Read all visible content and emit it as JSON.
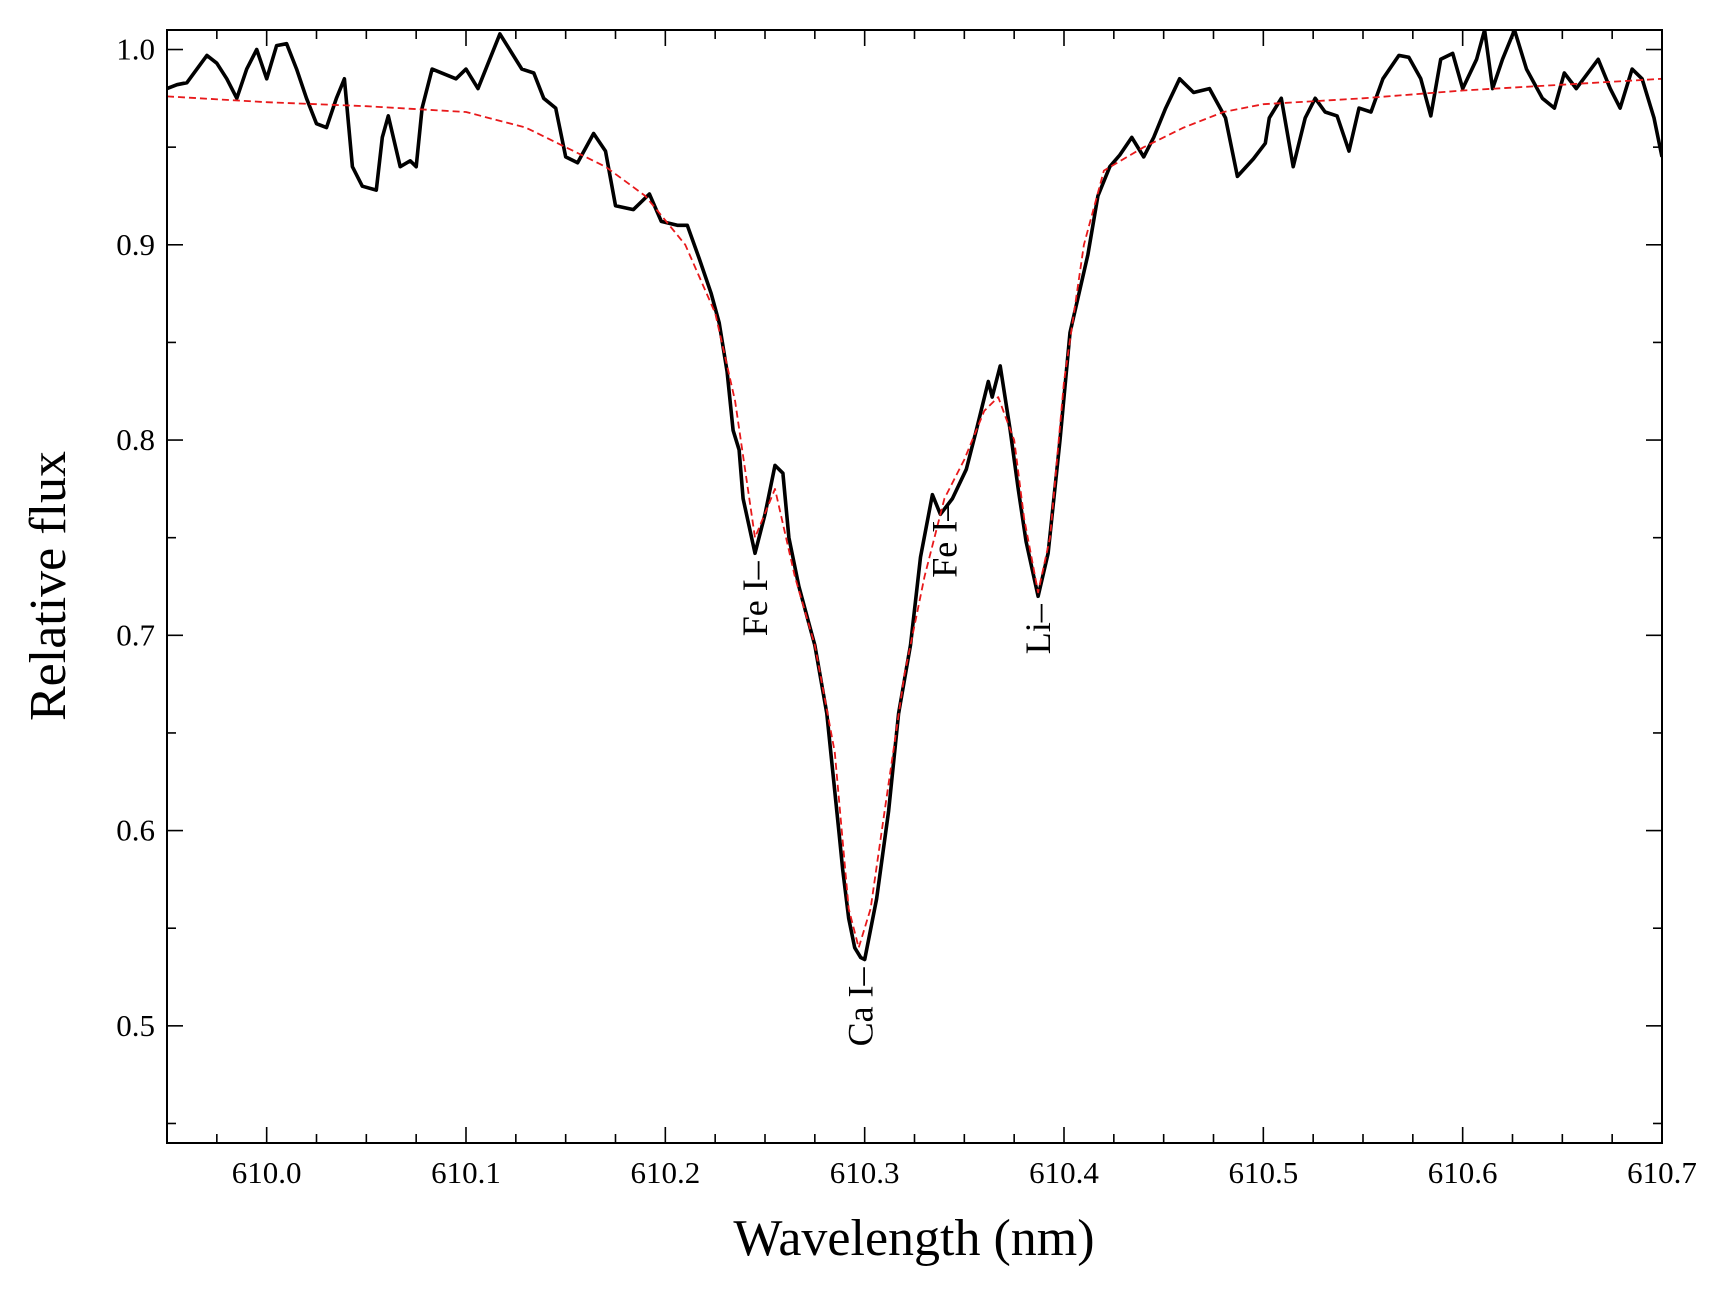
{
  "chart_data": {
    "type": "line",
    "xlabel": "Wavelength (nm)",
    "ylabel": "Relative flux",
    "xlim": [
      609.95,
      610.7
    ],
    "ylim": [
      0.44,
      1.01
    ],
    "xticks": [
      {
        "value": 610.0,
        "label": "610.0"
      },
      610.1,
      610.2,
      610.3,
      610.4,
      610.5,
      610.6,
      610.7
    ],
    "yticks": [
      0.5,
      0.6,
      0.7,
      0.8,
      0.9,
      {
        "value": 1.0,
        "label": "1.0"
      }
    ],
    "xminorticks": [
      609.975,
      610.025,
      610.05,
      610.075,
      610.125,
      610.15,
      610.175,
      610.225,
      610.25,
      610.275,
      610.325,
      610.35,
      610.375,
      610.425,
      610.45,
      610.475,
      610.525,
      610.55,
      610.575,
      610.625,
      610.65,
      610.675
    ],
    "yminorticks": [
      0.45,
      0.55,
      0.65,
      0.75,
      0.85,
      0.95
    ],
    "series": [
      {
        "color": "#000000",
        "style": "solid",
        "x": [
          609.95,
          609.955,
          609.96,
          609.965,
          609.97,
          609.975,
          609.98,
          609.985,
          609.99,
          609.995,
          610.0,
          610.005,
          610.01,
          610.015,
          610.02,
          610.025,
          610.03,
          610.035,
          610.039,
          610.043,
          610.048,
          610.055,
          610.058,
          610.061,
          610.067,
          610.072,
          610.075,
          610.078,
          610.083,
          610.095,
          610.1,
          610.106,
          610.117,
          610.128,
          610.134,
          610.139,
          610.145,
          610.15,
          610.156,
          610.164,
          610.17,
          610.175,
          610.184,
          610.192,
          610.198,
          610.206,
          610.211,
          610.217,
          610.223,
          610.227,
          610.231,
          610.234,
          610.237,
          610.239,
          610.245,
          610.25,
          610.255,
          610.259,
          610.262,
          610.267,
          610.275,
          610.281,
          610.287,
          610.289,
          610.292,
          610.295,
          610.298,
          610.3,
          610.306,
          610.312,
          610.317,
          610.323,
          610.328,
          610.334,
          610.338,
          610.344,
          610.351,
          610.356,
          610.362,
          610.364,
          610.368,
          610.373,
          610.377,
          610.381,
          610.387,
          610.392,
          610.398,
          610.403,
          610.412,
          610.417,
          610.423,
          610.428,
          610.434,
          610.44,
          610.445,
          610.451,
          610.458,
          610.465,
          610.473,
          610.481,
          610.487,
          610.495,
          610.501,
          610.503,
          610.509,
          610.515,
          610.521,
          610.526,
          610.531,
          610.537,
          610.543,
          610.548,
          610.554,
          610.56,
          610.568,
          610.573,
          610.579,
          610.584,
          610.589,
          610.595,
          610.6,
          610.607,
          610.611,
          610.615,
          610.62,
          610.626,
          610.632,
          610.64,
          610.646,
          610.651,
          610.657,
          610.668,
          610.674,
          610.679,
          610.685,
          610.69,
          610.696,
          610.7
        ],
        "values": [
          0.98,
          0.982,
          0.983,
          0.99,
          0.997,
          0.993,
          0.985,
          0.975,
          0.99,
          1.0,
          0.985,
          1.002,
          1.003,
          0.99,
          0.975,
          0.962,
          0.96,
          0.975,
          0.985,
          0.94,
          0.93,
          0.928,
          0.955,
          0.966,
          0.94,
          0.943,
          0.94,
          0.97,
          0.99,
          0.985,
          0.99,
          0.98,
          1.008,
          0.99,
          0.988,
          0.975,
          0.97,
          0.945,
          0.942,
          0.957,
          0.948,
          0.92,
          0.918,
          0.926,
          0.912,
          0.91,
          0.91,
          0.893,
          0.875,
          0.86,
          0.835,
          0.805,
          0.795,
          0.77,
          0.742,
          0.762,
          0.787,
          0.783,
          0.75,
          0.725,
          0.695,
          0.66,
          0.6,
          0.58,
          0.555,
          0.54,
          0.535,
          0.534,
          0.565,
          0.61,
          0.66,
          0.695,
          0.74,
          0.772,
          0.762,
          0.77,
          0.785,
          0.805,
          0.83,
          0.822,
          0.838,
          0.805,
          0.775,
          0.748,
          0.72,
          0.742,
          0.8,
          0.855,
          0.895,
          0.925,
          0.94,
          0.946,
          0.955,
          0.945,
          0.955,
          0.97,
          0.985,
          0.978,
          0.98,
          0.965,
          0.935,
          0.944,
          0.952,
          0.965,
          0.975,
          0.94,
          0.965,
          0.975,
          0.968,
          0.966,
          0.948,
          0.97,
          0.968,
          0.985,
          0.997,
          0.996,
          0.985,
          0.966,
          0.995,
          0.998,
          0.98,
          0.995,
          1.01,
          0.98,
          0.995,
          1.01,
          0.99,
          0.975,
          0.97,
          0.988,
          0.98,
          0.995,
          0.98,
          0.97,
          0.99,
          0.985,
          0.965,
          0.945
        ]
      },
      {
        "color": "#e8191b",
        "style": "dashed",
        "x": [
          609.95,
          610.0,
          610.05,
          610.1,
          610.13,
          610.15,
          610.17,
          610.19,
          610.21,
          610.225,
          610.235,
          610.245,
          610.255,
          610.265,
          610.275,
          610.285,
          610.292,
          610.297,
          610.303,
          610.31,
          610.32,
          610.33,
          610.34,
          610.35,
          610.36,
          610.367,
          610.375,
          610.38,
          610.387,
          610.393,
          610.4,
          610.41,
          610.42,
          610.44,
          610.46,
          610.48,
          610.5,
          610.55,
          610.6,
          610.65,
          610.7
        ],
        "values": [
          0.976,
          0.973,
          0.971,
          0.968,
          0.96,
          0.95,
          0.94,
          0.925,
          0.9,
          0.865,
          0.82,
          0.75,
          0.775,
          0.73,
          0.695,
          0.64,
          0.56,
          0.54,
          0.56,
          0.61,
          0.68,
          0.73,
          0.77,
          0.79,
          0.815,
          0.822,
          0.8,
          0.76,
          0.722,
          0.75,
          0.83,
          0.9,
          0.938,
          0.95,
          0.96,
          0.968,
          0.972,
          0.975,
          0.979,
          0.982,
          0.985
        ]
      }
    ],
    "annotations": [
      {
        "text": "Fe I–",
        "x": 610.245,
        "y": 0.742
      },
      {
        "text": "Ca I–",
        "x": 610.298,
        "y": 0.534
      },
      {
        "text": "Fe I–",
        "x": 610.34,
        "y": 0.772
      },
      {
        "text": "Li–",
        "x": 610.387,
        "y": 0.72
      }
    ]
  }
}
